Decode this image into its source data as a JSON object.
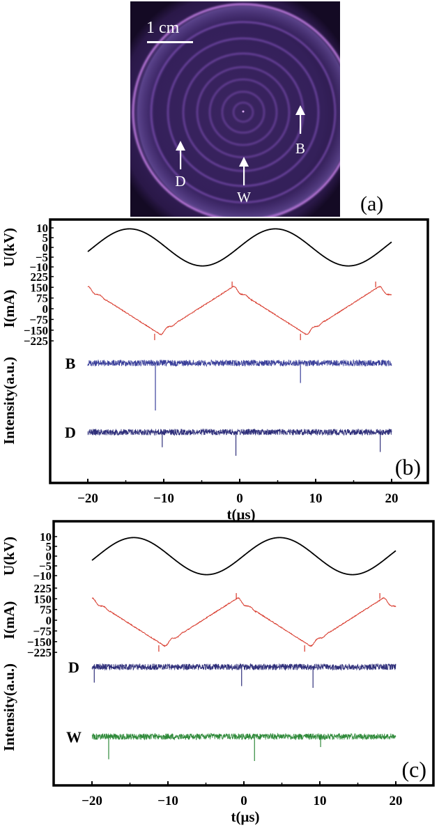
{
  "figure": {
    "panel_a": {
      "label": "(a)",
      "scale_bar_label": "1 cm",
      "markers": [
        {
          "label": "D",
          "name": "marker-d"
        },
        {
          "label": "W",
          "name": "marker-w"
        },
        {
          "label": "B",
          "name": "marker-b"
        }
      ],
      "colors": {
        "background": "#2b1a4a",
        "ring": "#b86ee0",
        "text": "#ffffff"
      }
    }
  },
  "chart_data": [
    {
      "type": "line",
      "panel": "(b)",
      "title": "",
      "xlabel": "t(μs)",
      "xlim": [
        -25,
        25
      ],
      "xticks": [
        -20,
        -10,
        0,
        10,
        20
      ],
      "x_range_data": [
        -20,
        20
      ],
      "grid": false,
      "stacked_axes": [
        {
          "ylabel": "U(kV)",
          "yticks": [
            10,
            5,
            0,
            -5,
            -10
          ],
          "ylim": [
            -10,
            10
          ]
        },
        {
          "ylabel": "I(mA)",
          "yticks": [
            225,
            150,
            75,
            0,
            -75,
            -150,
            -225
          ],
          "ylim": [
            -225,
            225
          ]
        },
        {
          "ylabel": "Intensity(a.u.)",
          "yticks": []
        }
      ],
      "series": [
        {
          "name": "U",
          "unit": "kV",
          "color": "#000000",
          "shape": "sine",
          "amplitude": 9.5,
          "period_us": 19.2,
          "peaks_us": [
            -14.5,
            4.7
          ],
          "troughs_us": [
            -5.0,
            14.3
          ]
        },
        {
          "name": "I",
          "unit": "mA",
          "color": "#d8392b",
          "shape": "sawtooth-with-spikes",
          "max": 150,
          "min": -175,
          "positive_spikes_us": [
            -1.0,
            17.9
          ],
          "negative_spikes_us": [
            -11.2,
            8.0
          ]
        },
        {
          "name": "B",
          "color": "#3a3f9a",
          "shape": "noise-baseline",
          "dips_us": [
            -11.1,
            8.0
          ],
          "dip_depths": [
            1.0,
            0.42
          ]
        },
        {
          "name": "D",
          "color": "#2f2f7a",
          "shape": "noise-baseline",
          "dips_us": [
            -10.2,
            -0.5,
            18.5
          ],
          "dip_depths": [
            0.32,
            0.5,
            0.42
          ]
        }
      ],
      "trace_labels": [
        "B",
        "D"
      ],
      "panel_label": "(b)"
    },
    {
      "type": "line",
      "panel": "(c)",
      "title": "",
      "xlabel": "t(μs)",
      "xlim": [
        -25,
        25
      ],
      "xticks": [
        -20,
        -10,
        0,
        10,
        20
      ],
      "x_range_data": [
        -20,
        20
      ],
      "grid": false,
      "stacked_axes": [
        {
          "ylabel": "U(kV)",
          "yticks": [
            10,
            5,
            0,
            -5,
            -10
          ],
          "ylim": [
            -10,
            10
          ]
        },
        {
          "ylabel": "I(mA)",
          "yticks": [
            225,
            150,
            75,
            0,
            -75,
            -150,
            -225
          ],
          "ylim": [
            -225,
            225
          ]
        },
        {
          "ylabel": "Intensity(a.u.)",
          "yticks": []
        }
      ],
      "series": [
        {
          "name": "U",
          "unit": "kV",
          "color": "#000000",
          "shape": "sine",
          "amplitude": 9.5,
          "period_us": 19.2,
          "peaks_us": [
            -14.5,
            4.7
          ],
          "troughs_us": [
            -5.0,
            14.3
          ]
        },
        {
          "name": "I",
          "unit": "mA",
          "color": "#d8392b",
          "shape": "sawtooth-with-spikes",
          "max": 150,
          "min": -175,
          "positive_spikes_us": [
            -1.0,
            17.9
          ],
          "negative_spikes_us": [
            -11.2,
            8.0
          ]
        },
        {
          "name": "D",
          "color": "#2f2f7a",
          "shape": "noise-baseline",
          "dips_us": [
            -19.7,
            -0.3,
            9.1
          ],
          "dip_depths": [
            0.45,
            0.55,
            0.6
          ]
        },
        {
          "name": "W",
          "color": "#2f8a3a",
          "shape": "noise-baseline",
          "dips_us": [
            -17.8,
            1.4,
            10.1
          ],
          "dip_depths": [
            0.65,
            0.7,
            0.3
          ]
        }
      ],
      "trace_labels": [
        "D",
        "W"
      ],
      "panel_label": "(c)"
    }
  ]
}
